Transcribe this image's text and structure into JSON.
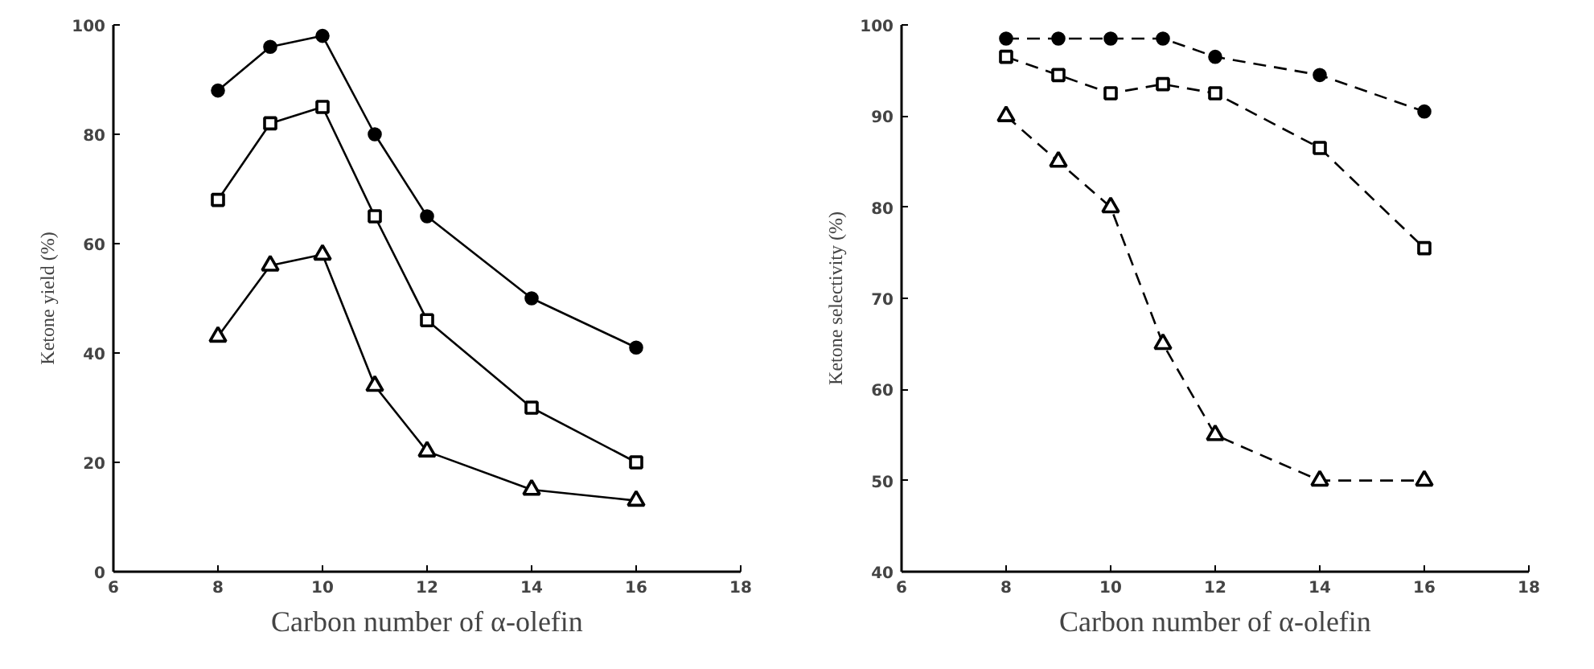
{
  "chart_data": [
    {
      "type": "line",
      "xlabel": "Carbon number of α-olefin",
      "ylabel": "Ketone yield (%)",
      "x": [
        8,
        9,
        10,
        11,
        12,
        14,
        16
      ],
      "xlim": [
        6,
        18
      ],
      "xticks": [
        6,
        8,
        10,
        12,
        14,
        16,
        18
      ],
      "ylim": [
        0,
        100
      ],
      "yticks": [
        0,
        20,
        40,
        60,
        80,
        100
      ],
      "grid": false,
      "line_style": "solid",
      "series": [
        {
          "color": "#000000",
          "marker": "circle",
          "values": [
            88,
            96,
            98,
            80,
            65,
            50,
            41
          ]
        },
        {
          "color": "#000000",
          "marker": "square",
          "values": [
            68,
            82,
            85,
            65,
            46,
            30,
            20
          ]
        },
        {
          "color": "#000000",
          "marker": "triangle",
          "values": [
            43,
            56,
            58,
            34,
            22,
            15,
            13
          ]
        }
      ]
    },
    {
      "type": "line",
      "xlabel": "Carbon number of α-olefin",
      "ylabel": "Ketone selectivity (%)",
      "x": [
        8,
        9,
        10,
        11,
        12,
        14,
        16
      ],
      "xlim": [
        6,
        18
      ],
      "xticks": [
        6,
        8,
        10,
        12,
        14,
        16,
        18
      ],
      "ylim": [
        40,
        100
      ],
      "yticks": [
        40,
        50,
        60,
        70,
        80,
        90,
        100
      ],
      "grid": false,
      "line_style": "dashed",
      "series": [
        {
          "color": "#000000",
          "marker": "circle",
          "values": [
            98.5,
            98.5,
            98.5,
            98.5,
            96.5,
            94.5,
            90.5
          ]
        },
        {
          "color": "#000000",
          "marker": "square",
          "values": [
            96.5,
            94.5,
            92.5,
            93.5,
            92.5,
            86.5,
            75.5
          ]
        },
        {
          "color": "#000000",
          "marker": "triangle",
          "values": [
            90,
            85,
            80,
            65,
            55,
            50,
            50
          ]
        }
      ]
    }
  ]
}
